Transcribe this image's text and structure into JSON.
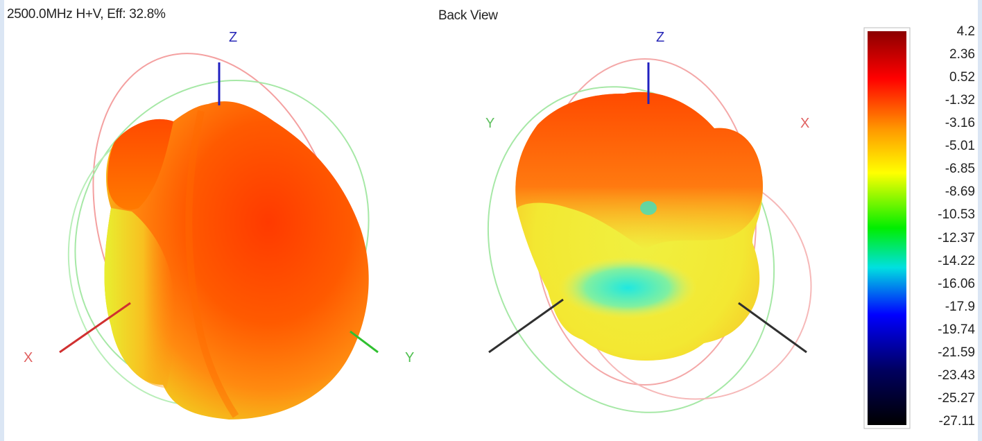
{
  "chart_data": {
    "type": "heatmap",
    "title": "2500.0MHz H+V, Eff: 32.8%",
    "views": [
      {
        "name": "front",
        "caption": ""
      },
      {
        "name": "back",
        "caption": "Back View"
      }
    ],
    "axes": {
      "front": {
        "z": "Z",
        "x": "X",
        "y": "Y"
      },
      "back": {
        "z": "Z",
        "y": "Y",
        "x": "X"
      }
    },
    "colorscale": {
      "values": [
        4.2,
        2.36,
        0.52,
        -1.32,
        -3.16,
        -5.01,
        -6.85,
        -8.69,
        -10.53,
        -12.37,
        -14.22,
        -16.06,
        -17.9,
        -19.74,
        -21.59,
        -23.43,
        -25.27,
        -27.11
      ],
      "labels": [
        "4.2",
        "2.36",
        "0.52",
        "-1.32",
        "-3.16",
        "-5.01",
        "-6.85",
        "-8.69",
        "-10.53",
        "-12.37",
        "-14.22",
        "-16.06",
        "-17.9",
        "-19.74",
        "-21.59",
        "-23.43",
        "-25.27",
        "-27.11"
      ],
      "colors": [
        "#8b0000",
        "#ff0000",
        "#ff9900",
        "#ffff00",
        "#00ee00",
        "#00e0e0",
        "#0000ff",
        "#000060",
        "#000000"
      ]
    }
  }
}
